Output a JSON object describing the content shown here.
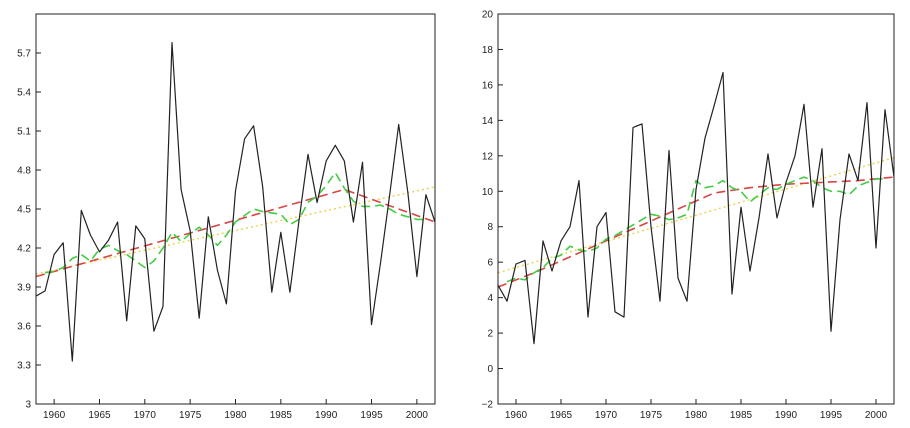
{
  "chart_data": [
    {
      "type": "line",
      "title": "",
      "xlabel": "",
      "ylabel": "",
      "xlim": [
        1958,
        2002
      ],
      "ylim": [
        3.0,
        6.0
      ],
      "x_ticks": [
        1960,
        1965,
        1970,
        1975,
        1980,
        1985,
        1990,
        1995,
        2000
      ],
      "y_ticks": [
        3,
        3.3,
        3.6,
        3.9,
        4.2,
        4.5,
        4.8,
        5.1,
        5.4,
        5.7
      ],
      "y_tick_labels": [
        "3",
        "3.3",
        "3.6",
        "3.9",
        "4.2",
        "4.5",
        "4.8",
        "5.1",
        "5.4",
        "5.7"
      ],
      "grid": false,
      "series": [
        {
          "style": "solid",
          "color": "#222222",
          "x": [
            1958,
            1959,
            1960,
            1961,
            1962,
            1963,
            1964,
            1965,
            1966,
            1967,
            1968,
            1969,
            1970,
            1971,
            1972,
            1973,
            1974,
            1975,
            1976,
            1977,
            1978,
            1979,
            1980,
            1981,
            1982,
            1983,
            1984,
            1985,
            1986,
            1987,
            1988,
            1989,
            1990,
            1991,
            1992,
            1993,
            1994,
            1995,
            1996,
            1997,
            1998,
            1999,
            2000,
            2001,
            2002
          ],
          "values": [
            3.83,
            3.87,
            4.15,
            4.24,
            3.33,
            4.49,
            4.3,
            4.17,
            4.26,
            4.4,
            3.64,
            4.37,
            4.27,
            3.56,
            3.75,
            5.78,
            4.65,
            4.33,
            3.66,
            4.44,
            4.03,
            3.77,
            4.64,
            5.04,
            5.14,
            4.67,
            3.86,
            4.32,
            3.86,
            4.41,
            4.92,
            4.55,
            4.87,
            4.99,
            4.87,
            4.4,
            4.86,
            3.61,
            4.09,
            4.61,
            5.15,
            4.63,
            3.98,
            4.61,
            4.4
          ]
        },
        {
          "style": "dashed",
          "color": "#44cc44",
          "x": [
            1959,
            1960,
            1961,
            1962,
            1963,
            1964,
            1965,
            1966,
            1967,
            1968,
            1969,
            1970,
            1971,
            1972,
            1973,
            1974,
            1975,
            1976,
            1977,
            1978,
            1979,
            1980,
            1981,
            1982,
            1983,
            1984,
            1985,
            1986,
            1987,
            1988,
            1989,
            1990,
            1991,
            1992,
            1993,
            1994,
            1995,
            1996,
            1997,
            1998,
            1999,
            2000,
            2001
          ],
          "values": [
            4.01,
            4.02,
            4.05,
            4.12,
            4.15,
            4.1,
            4.19,
            4.22,
            4.18,
            4.15,
            4.1,
            4.05,
            4.1,
            4.2,
            4.32,
            4.25,
            4.31,
            4.36,
            4.3,
            4.22,
            4.3,
            4.4,
            4.45,
            4.5,
            4.48,
            4.47,
            4.46,
            4.38,
            4.42,
            4.55,
            4.6,
            4.68,
            4.78,
            4.66,
            4.56,
            4.52,
            4.52,
            4.53,
            4.5,
            4.46,
            4.44,
            4.42,
            4.42
          ]
        },
        {
          "style": "dashed",
          "color": "#d94545",
          "x": [
            1958,
            1992,
            2002
          ],
          "values": [
            3.98,
            4.65,
            4.4
          ]
        },
        {
          "style": "dotted",
          "color": "#e8d44a",
          "x": [
            1958,
            2002
          ],
          "values": [
            4.0,
            4.67
          ]
        }
      ]
    },
    {
      "type": "line",
      "title": "",
      "xlabel": "",
      "ylabel": "",
      "xlim": [
        1958,
        2002
      ],
      "ylim": [
        -2,
        20
      ],
      "x_ticks": [
        1960,
        1965,
        1970,
        1975,
        1980,
        1985,
        1990,
        1995,
        2000
      ],
      "y_ticks": [
        -2,
        0,
        2,
        4,
        6,
        8,
        10,
        12,
        14,
        16,
        18,
        20
      ],
      "y_tick_labels": [
        "−2",
        "0",
        "2",
        "4",
        "6",
        "8",
        "10",
        "12",
        "14",
        "16",
        "18",
        "20"
      ],
      "grid": false,
      "series": [
        {
          "style": "solid",
          "color": "#222222",
          "x": [
            1958,
            1959,
            1960,
            1961,
            1962,
            1963,
            1964,
            1965,
            1966,
            1967,
            1968,
            1969,
            1970,
            1971,
            1972,
            1973,
            1974,
            1975,
            1976,
            1977,
            1978,
            1979,
            1980,
            1981,
            1982,
            1983,
            1984,
            1985,
            1986,
            1987,
            1988,
            1989,
            1990,
            1991,
            1992,
            1993,
            1994,
            1995,
            1996,
            1997,
            1998,
            1999,
            2000,
            2001,
            2002
          ],
          "values": [
            4.7,
            3.8,
            5.9,
            6.1,
            1.4,
            7.2,
            5.5,
            7.2,
            8.0,
            10.6,
            2.9,
            8.0,
            8.8,
            3.2,
            2.9,
            13.6,
            13.8,
            8.0,
            3.8,
            12.3,
            5.1,
            3.8,
            10.1,
            13.0,
            14.8,
            16.7,
            4.2,
            9.1,
            5.5,
            8.5,
            12.1,
            8.5,
            10.5,
            12.0,
            14.9,
            9.1,
            12.4,
            2.1,
            8.4,
            12.1,
            10.6,
            15.0,
            6.8,
            14.6,
            10.8
          ]
        },
        {
          "style": "dashed",
          "color": "#44cc44",
          "x": [
            1959,
            1960,
            1961,
            1962,
            1963,
            1964,
            1965,
            1966,
            1967,
            1968,
            1969,
            1970,
            1971,
            1972,
            1973,
            1974,
            1975,
            1976,
            1977,
            1978,
            1979,
            1980,
            1981,
            1982,
            1983,
            1984,
            1985,
            1986,
            1987,
            1988,
            1989,
            1990,
            1991,
            1992,
            1993,
            1994,
            1995,
            1996,
            1997,
            1998,
            1999,
            2000,
            2001
          ],
          "values": [
            4.9,
            5.1,
            5.0,
            5.4,
            5.7,
            6.2,
            6.4,
            6.9,
            6.7,
            6.6,
            6.8,
            7.3,
            7.5,
            7.8,
            8.1,
            8.4,
            8.7,
            8.6,
            8.4,
            8.5,
            8.7,
            10.6,
            10.2,
            10.3,
            10.6,
            10.2,
            10.0,
            9.4,
            9.8,
            10.2,
            10.1,
            10.4,
            10.6,
            10.8,
            10.6,
            10.2,
            10.0,
            10.0,
            9.8,
            10.3,
            10.5,
            10.7,
            10.7
          ]
        },
        {
          "style": "dashed",
          "color": "#d94545",
          "x": [
            1958,
            1962,
            1966,
            1970,
            1974,
            1978,
            1982,
            1986,
            1990,
            1994,
            1998,
            2002
          ],
          "values": [
            4.6,
            5.4,
            6.3,
            7.2,
            8.1,
            9.0,
            9.9,
            10.2,
            10.4,
            10.5,
            10.6,
            10.8
          ]
        },
        {
          "style": "dotted",
          "color": "#e8d44a",
          "x": [
            1958,
            2002
          ],
          "values": [
            5.4,
            11.9
          ]
        }
      ]
    }
  ]
}
